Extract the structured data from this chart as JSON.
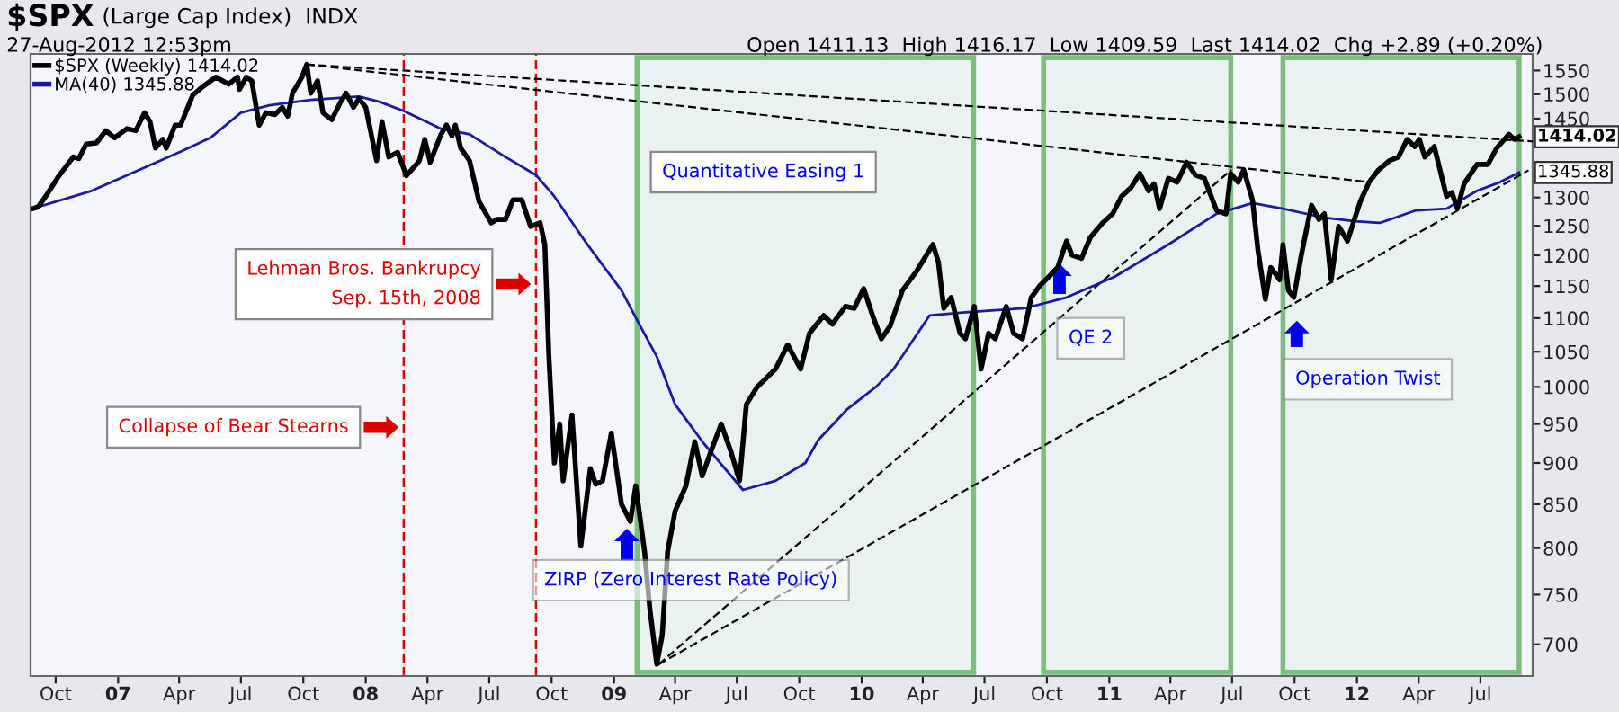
{
  "chart_data": {
    "type": "line",
    "title": "$SPX",
    "subtitle": "(Large Cap Index)  INDX",
    "annotations": [
      "ZIRP (Zero Interest Rate Policy)",
      "QE 2",
      "Operation Twist",
      {
        "text": "1414.02",
        "x": "2012-08-27",
        "y": 1414.02
      },
      {
        "text": "1345.88",
        "x": "2012-08-27",
        "y": 1345.88
      },
      "27-Aug-2012 12:53pm",
      "Open 1411.13  High 1416.17  Low 1409.59  Last 1414.02  Chg +2.89 (+0.20%)"
    ],
    "log": "y",
    "legend": "top left",
    "xlim": [
      "2006-08-25",
      "2012-09-16"
    ],
    "xticks": [
      {
        "value": "2006-10-01",
        "label": "Oct"
      },
      {
        "value": "2007-01-01",
        "label": "07"
      },
      {
        "value": "2007-04-01",
        "label": "Apr"
      },
      {
        "value": "2007-07-01",
        "label": "Jul"
      },
      {
        "value": "2007-10-01",
        "label": "Oct"
      },
      {
        "value": "2008-01-01",
        "label": "08"
      },
      {
        "value": "2008-04-01",
        "label": "Apr"
      },
      {
        "value": "2008-07-01",
        "label": "Jul"
      },
      {
        "value": "2008-10-01",
        "label": "Oct"
      },
      {
        "value": "2009-01-01",
        "label": "09"
      },
      {
        "value": "2009-04-01",
        "label": "Apr"
      },
      {
        "value": "2009-07-01",
        "label": "Jul"
      },
      {
        "value": "2009-10-01",
        "label": "Oct"
      },
      {
        "value": "2010-01-01",
        "label": "10"
      },
      {
        "value": "2010-04-01",
        "label": "Apr"
      },
      {
        "value": "2010-07-01",
        "label": "Jul"
      },
      {
        "value": "2010-10-01",
        "label": "Oct"
      },
      {
        "value": "2011-01-01",
        "label": "11"
      },
      {
        "value": "2011-04-01",
        "label": "Apr"
      },
      {
        "value": "2011-07-01",
        "label": "Jul"
      },
      {
        "value": "2011-10-01",
        "label": "Oct"
      },
      {
        "value": "2012-01-01",
        "label": "12"
      },
      {
        "value": "2012-04-01",
        "label": "Apr"
      },
      {
        "value": "2012-07-01",
        "label": "Jul"
      }
    ],
    "ylim": [
      670,
      1586
    ],
    "yticks": [
      700,
      750,
      800,
      850,
      900,
      950,
      1000,
      1050,
      1100,
      1150,
      1200,
      1250,
      1300,
      {
        "value": 1350,
        "label": null
      },
      {
        "value": 1400,
        "label": null
      },
      1450,
      1500,
      1550
    ],
    "ref_lines": [
      {
        "axis": "x",
        "value": "2008-02-26",
        "label": "Collapse of Bear Stearns",
        "color": "#dd0000",
        "line_style": "dashed"
      },
      {
        "axis": "x",
        "value": "2008-09-08",
        "label": "Lehman Bros. Bankrupcy\nSep. 15th, 2008",
        "color": "#dd0000",
        "line_style": "dashed"
      }
    ],
    "bands": [
      {
        "axis": "x",
        "from": "2009-02-04",
        "to": "2010-06-15",
        "label": "Quantitative Easing 1",
        "color": "#7cbf7c"
      },
      {
        "axis": "x",
        "from": "2010-09-26",
        "to": "2011-06-29",
        "color": "#7cbf7c"
      },
      {
        "axis": "x",
        "from": "2011-09-14",
        "to": "2012-08-27",
        "color": "#7cbf7c"
      }
    ],
    "series": [
      {
        "name": "$SPX (Weekly) 1414.02",
        "color": "#000000",
        "line_style": "solid",
        "x": [
          "2006-08-28",
          "2006-09-05",
          "2006-09-18",
          "2006-10-06",
          "2006-10-27",
          "2006-11-04",
          "2006-11-15",
          "2006-11-30",
          "2006-12-14",
          "2006-12-27",
          "2007-01-14",
          "2007-01-27",
          "2007-02-09",
          "2007-02-17",
          "2007-02-25",
          "2007-03-08",
          "2007-03-13",
          "2007-03-26",
          "2007-04-03",
          "2007-04-21",
          "2007-05-07",
          "2007-05-25",
          "2007-06-13",
          "2007-06-26",
          "2007-06-29",
          "2007-07-09",
          "2007-07-17",
          "2007-07-28",
          "2007-08-07",
          "2007-08-20",
          "2007-08-31",
          "2007-09-08",
          "2007-09-15",
          "2007-09-29",
          "2007-10-06",
          "2007-10-12",
          "2007-10-22",
          "2007-10-30",
          "2007-11-12",
          "2007-11-25",
          "2007-12-03",
          "2007-12-14",
          "2007-12-22",
          "2008-01-01",
          "2008-01-17",
          "2008-01-25",
          "2008-02-04",
          "2008-02-17",
          "2008-03-01",
          "2008-03-15",
          "2008-03-20",
          "2008-03-28",
          "2008-04-05",
          "2008-04-21",
          "2008-04-29",
          "2008-05-07",
          "2008-05-12",
          "2008-05-20",
          "2008-06-02",
          "2008-06-16",
          "2008-07-04",
          "2008-07-12",
          "2008-07-25",
          "2008-08-05",
          "2008-08-18",
          "2008-08-31",
          "2008-09-14",
          "2008-09-21",
          "2008-09-27",
          "2008-10-05",
          "2008-10-13",
          "2008-10-18",
          "2008-10-31",
          "2008-11-13",
          "2008-11-27",
          "2008-12-05",
          "2008-12-15",
          "2008-12-28",
          "2009-01-12",
          "2009-01-25",
          "2009-02-02",
          "2009-02-15",
          "2009-02-23",
          "2009-03-05",
          "2009-03-13",
          "2009-03-21",
          "2009-04-01",
          "2009-04-17",
          "2009-04-30",
          "2009-05-11",
          "2009-05-24",
          "2009-06-08",
          "2009-06-22",
          "2009-07-05",
          "2009-07-15",
          "2009-07-31",
          "2009-08-27",
          "2009-09-14",
          "2009-10-03",
          "2009-10-16",
          "2009-11-06",
          "2009-11-19",
          "2009-12-08",
          "2009-12-21",
          "2010-01-04",
          "2010-01-17",
          "2010-01-30",
          "2010-02-12",
          "2010-03-02",
          "2010-03-23",
          "2010-04-16",
          "2010-04-24",
          "2010-05-02",
          "2010-05-13",
          "2010-05-26",
          "2010-06-03",
          "2010-06-16",
          "2010-06-26",
          "2010-07-07",
          "2010-07-17",
          "2010-08-02",
          "2010-08-13",
          "2010-08-26",
          "2010-09-08",
          "2010-09-21",
          "2010-10-04",
          "2010-10-17",
          "2010-10-30",
          "2010-11-07",
          "2010-11-21",
          "2010-12-04",
          "2010-12-22",
          "2011-01-06",
          "2011-01-19",
          "2011-02-02",
          "2011-02-15",
          "2011-02-28",
          "2011-03-08",
          "2011-03-16",
          "2011-03-29",
          "2011-04-11",
          "2011-04-25",
          "2011-05-08",
          "2011-05-21",
          "2011-06-08",
          "2011-06-22",
          "2011-06-29",
          "2011-07-10",
          "2011-07-18",
          "2011-07-31",
          "2011-08-08",
          "2011-08-19",
          "2011-08-27",
          "2011-09-09",
          "2011-09-14",
          "2011-09-22",
          "2011-09-30",
          "2011-10-11",
          "2011-10-18",
          "2011-10-26",
          "2011-11-06",
          "2011-11-14",
          "2011-11-24",
          "2011-12-05",
          "2011-12-18",
          "2011-12-29",
          "2012-01-06",
          "2012-01-19",
          "2012-02-02",
          "2012-02-18",
          "2012-03-02",
          "2012-03-15",
          "2012-03-26",
          "2012-04-02",
          "2012-04-10",
          "2012-04-24",
          "2012-05-12",
          "2012-05-20",
          "2012-05-28",
          "2012-06-07",
          "2012-06-26",
          "2012-07-12",
          "2012-07-25",
          "2012-08-12",
          "2012-08-20",
          "2012-08-27"
        ],
        "values": [
          1280,
          1283,
          1305,
          1340,
          1375,
          1372,
          1400,
          1402,
          1426,
          1412,
          1430,
          1426,
          1462,
          1444,
          1392,
          1409,
          1392,
          1437,
          1437,
          1498,
          1517,
          1536,
          1521,
          1536,
          1510,
          1536,
          1528,
          1437,
          1462,
          1458,
          1473,
          1455,
          1502,
          1536,
          1563,
          1502,
          1528,
          1462,
          1448,
          1484,
          1502,
          1473,
          1491,
          1473,
          1368,
          1444,
          1375,
          1384,
          1340,
          1360,
          1368,
          1409,
          1365,
          1419,
          1437,
          1416,
          1437,
          1392,
          1368,
          1293,
          1255,
          1261,
          1261,
          1296,
          1296,
          1249,
          1255,
          1218,
          1043,
          900,
          950,
          878,
          962,
          802,
          893,
          874,
          878,
          938,
          850,
          830,
          872,
          796,
          734,
          681,
          709,
          796,
          842,
          872,
          927,
          884,
          915,
          950,
          915,
          878,
          976,
          1000,
          1025,
          1060,
          1025,
          1077,
          1104,
          1091,
          1118,
          1115,
          1146,
          1104,
          1069,
          1088,
          1143,
          1174,
          1218,
          1189,
          1115,
          1132,
          1077,
          1069,
          1118,
          1025,
          1077,
          1069,
          1118,
          1077,
          1069,
          1132,
          1151,
          1165,
          1180,
          1224,
          1200,
          1195,
          1230,
          1255,
          1271,
          1302,
          1318,
          1344,
          1312,
          1325,
          1280,
          1335,
          1328,
          1365,
          1341,
          1335,
          1277,
          1271,
          1344,
          1328,
          1351,
          1296,
          1209,
          1129,
          1180,
          1160,
          1218,
          1143,
          1132,
          1200,
          1240,
          1286,
          1261,
          1271,
          1160,
          1249,
          1224,
          1264,
          1293,
          1328,
          1351,
          1368,
          1375,
          1409,
          1395,
          1409,
          1375,
          1395,
          1302,
          1309,
          1280,
          1325,
          1361,
          1361,
          1392,
          1419,
          1409,
          1414.02
        ]
      },
      {
        "name": "MA(40) 1345.88",
        "color": "#1a1aa0",
        "line_style": "solid",
        "x": [
          "2006-08-28",
          "2006-11-23",
          "2007-04-03",
          "2007-05-17",
          "2007-07-01",
          "2007-08-12",
          "2007-10-12",
          "2007-12-22",
          "2008-01-22",
          "2008-02-27",
          "2008-04-21",
          "2008-06-02",
          "2008-07-25",
          "2008-09-08",
          "2008-10-05",
          "2008-11-19",
          "2009-01-12",
          "2009-02-07",
          "2009-03-05",
          "2009-04-01",
          "2009-05-13",
          "2009-07-10",
          "2009-08-27",
          "2009-10-10",
          "2009-10-29",
          "2009-12-10",
          "2010-01-22",
          "2010-02-17",
          "2010-04-11",
          "2010-06-03",
          "2010-08-29",
          "2010-10-30",
          "2011-01-09",
          "2011-03-29",
          "2011-06-08",
          "2011-07-31",
          "2011-09-14",
          "2011-11-14",
          "2011-12-29",
          "2012-02-04",
          "2012-03-28",
          "2012-05-12",
          "2012-06-26",
          "2012-07-30",
          "2012-08-27"
        ],
        "values": [
          1280,
          1312,
          1385,
          1412,
          1462,
          1477,
          1488,
          1495,
          1484,
          1465,
          1430,
          1419,
          1375,
          1341,
          1302,
          1224,
          1143,
          1091,
          1043,
          976,
          925,
          867,
          878,
          900,
          929,
          969,
          1000,
          1025,
          1104,
          1109,
          1115,
          1132,
          1165,
          1218,
          1271,
          1290,
          1280,
          1264,
          1258,
          1255,
          1277,
          1280,
          1312,
          1328,
          1345.88
        ]
      },
      {
        "color": "#000000",
        "line_style": "dashed",
        "x": [
          "2007-10-06",
          "2012-09-16"
        ],
        "values": [
          1563,
          1405
        ]
      },
      {
        "color": "#000000",
        "line_style": "dashed",
        "x": [
          "2007-10-06",
          "2012-01-19"
        ],
        "values": [
          1563,
          1328
        ]
      },
      {
        "color": "#000000",
        "line_style": "dashed",
        "x": [
          "2009-03-08",
          "2011-06-30"
        ],
        "values": [
          681,
          1351
        ]
      },
      {
        "color": "#000000",
        "line_style": "dashed",
        "x": [
          "2009-03-08",
          "2012-09-10"
        ],
        "values": [
          681,
          1350
        ]
      }
    ]
  }
}
